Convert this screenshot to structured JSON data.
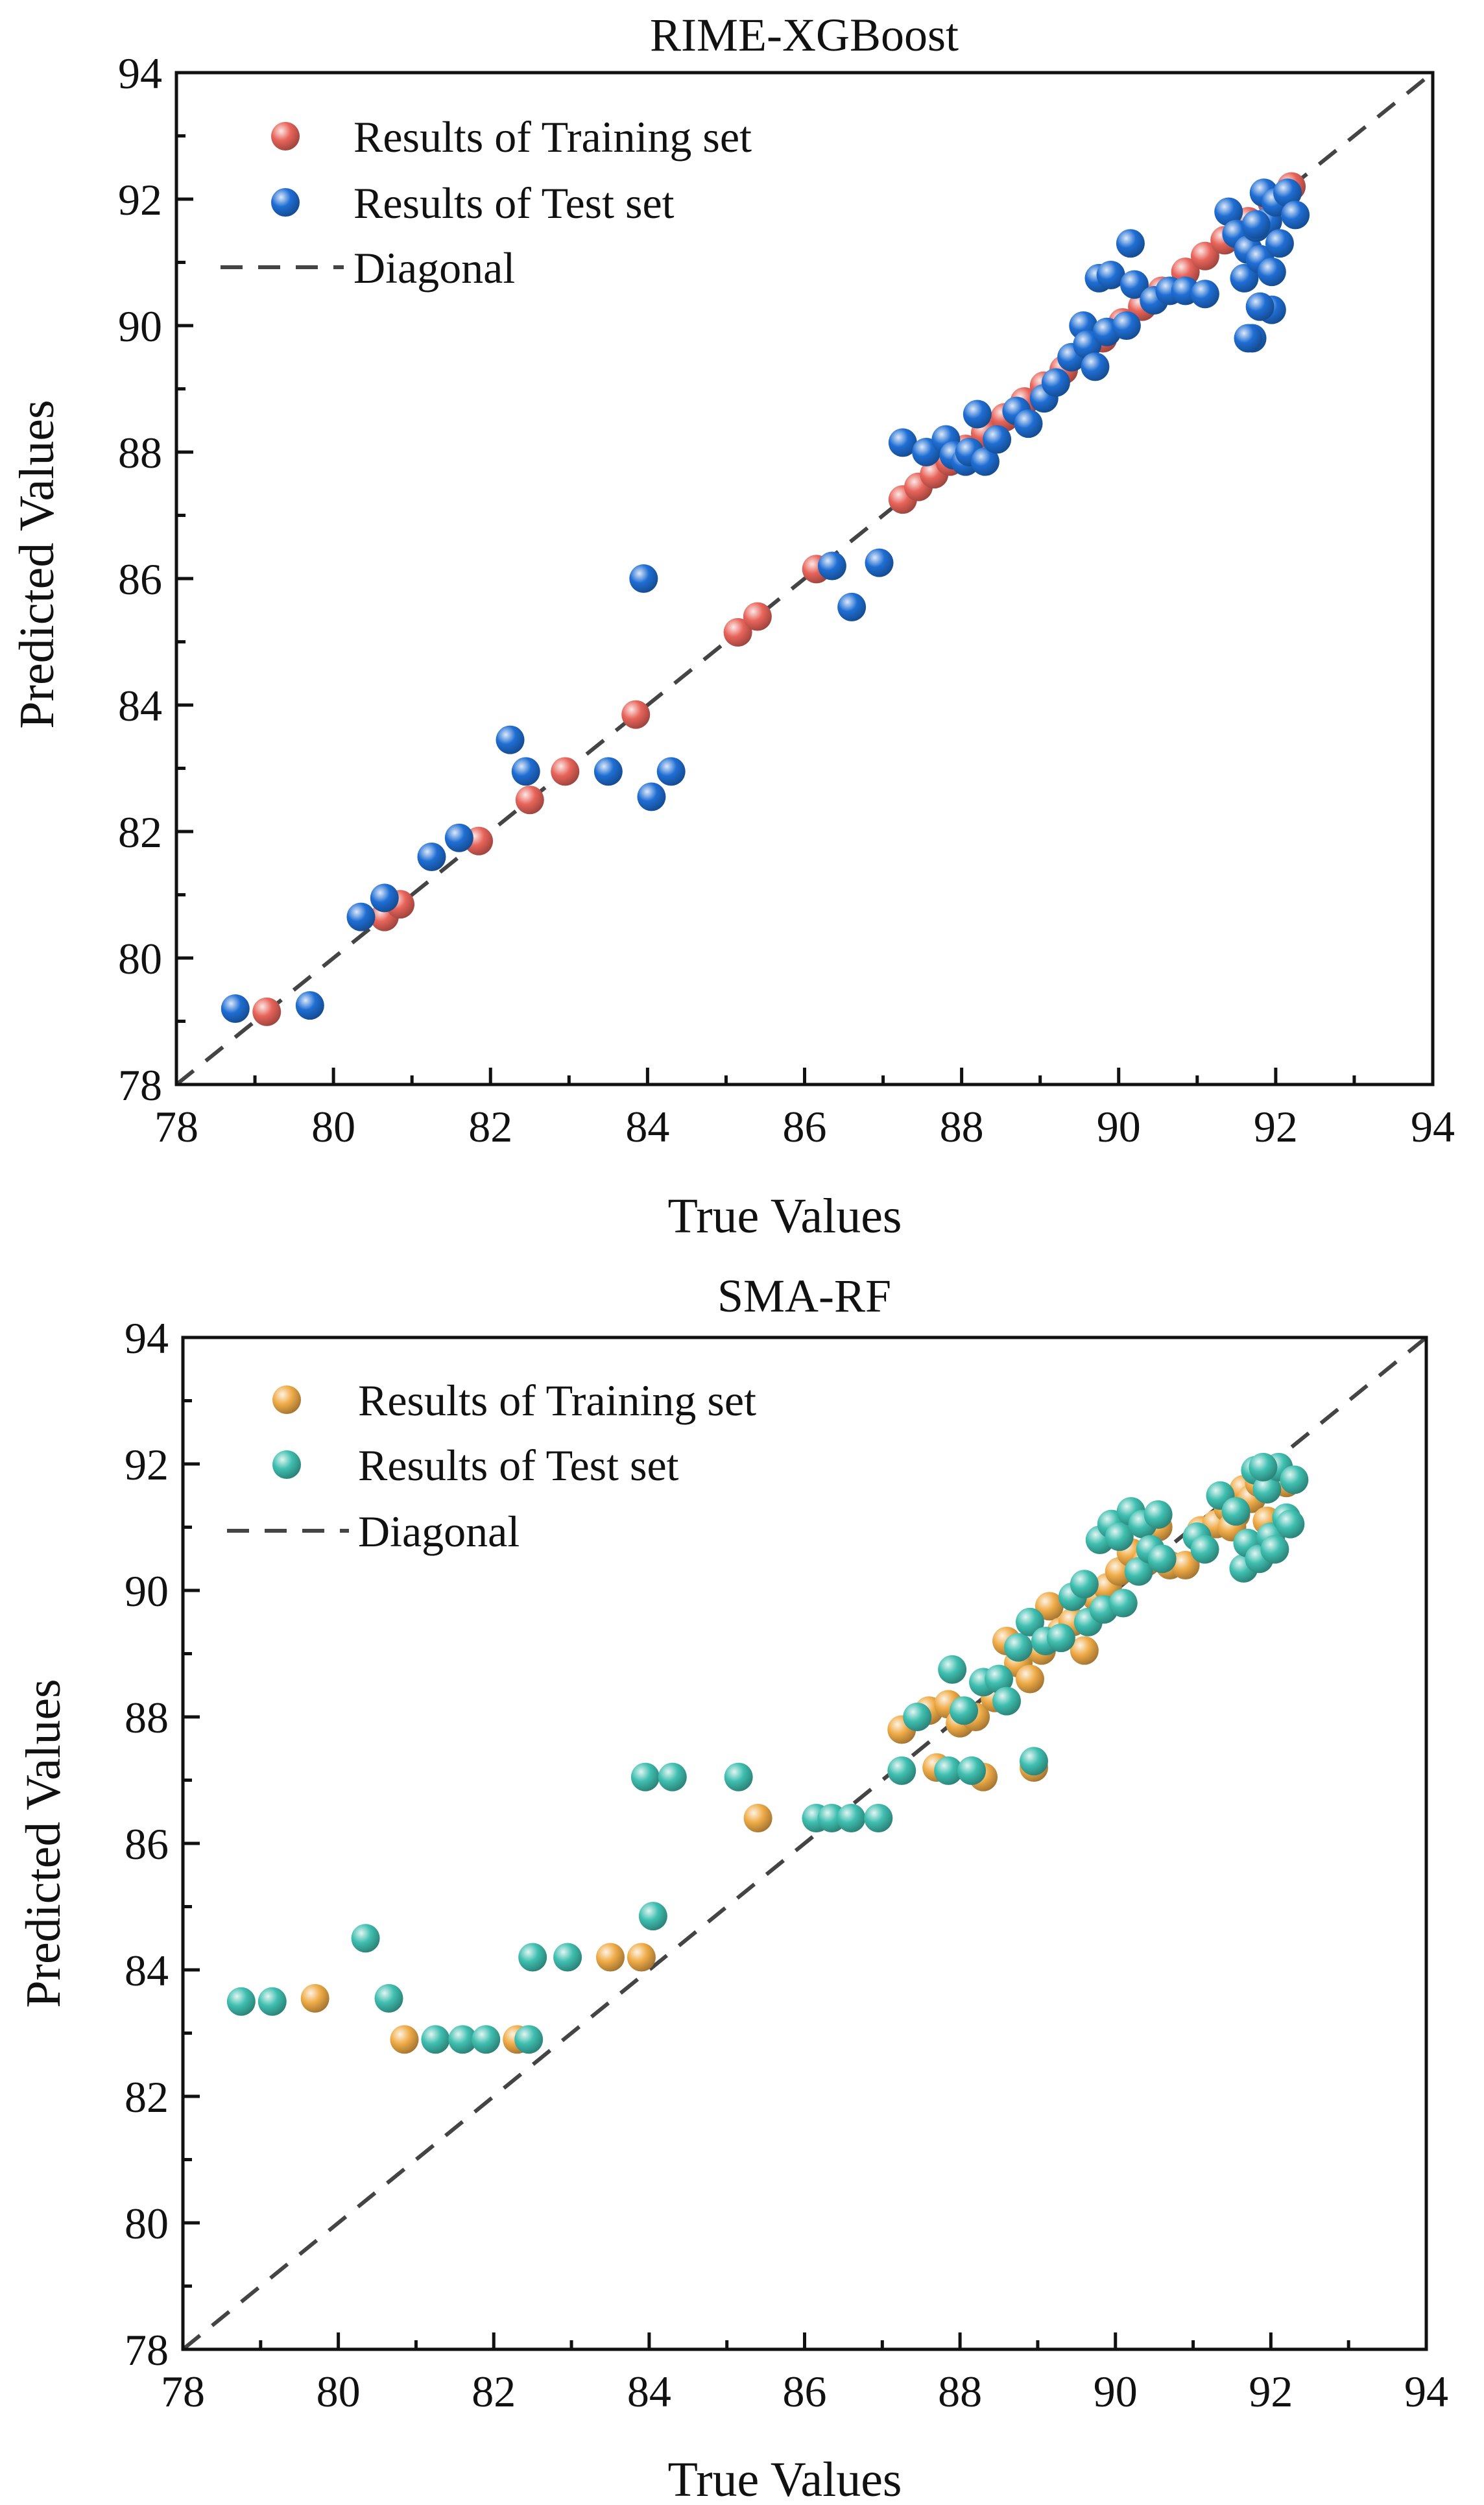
{
  "chart_data": [
    {
      "type": "scatter",
      "title": "RIME-XGBoost",
      "xlabel": "True Values",
      "ylabel": "Predicted Values",
      "xlim": [
        78,
        94
      ],
      "ylim": [
        78,
        94
      ],
      "xticks": [
        78,
        80,
        82,
        84,
        86,
        88,
        90,
        92,
        94
      ],
      "yticks": [
        78,
        80,
        82,
        84,
        86,
        88,
        90,
        92,
        94
      ],
      "grid": false,
      "legend_position": "top-left",
      "diagonal_label": "Diagonal",
      "diagonal_color": "#444444",
      "series": [
        {
          "name": "Results of Training set",
          "color": "#e8645a",
          "points": [
            [
              79.15,
              79.15
            ],
            [
              80.65,
              80.65
            ],
            [
              80.85,
              80.85
            ],
            [
              81.85,
              81.85
            ],
            [
              82.5,
              82.5
            ],
            [
              82.95,
              82.95
            ],
            [
              83.85,
              83.85
            ],
            [
              85.15,
              85.15
            ],
            [
              85.4,
              85.4
            ],
            [
              86.15,
              86.15
            ],
            [
              87.25,
              87.25
            ],
            [
              87.45,
              87.45
            ],
            [
              87.65,
              87.65
            ],
            [
              87.85,
              87.85
            ],
            [
              88.05,
              88.05
            ],
            [
              88.3,
              88.3
            ],
            [
              88.55,
              88.55
            ],
            [
              88.8,
              88.8
            ],
            [
              89.05,
              89.05
            ],
            [
              89.3,
              89.3
            ],
            [
              89.55,
              89.55
            ],
            [
              89.8,
              89.8
            ],
            [
              90.05,
              90.05
            ],
            [
              90.3,
              90.3
            ],
            [
              90.55,
              90.55
            ],
            [
              90.85,
              90.85
            ],
            [
              91.1,
              91.1
            ],
            [
              91.35,
              91.35
            ],
            [
              91.65,
              91.65
            ],
            [
              91.95,
              91.95
            ],
            [
              92.2,
              92.2
            ]
          ]
        },
        {
          "name": "Results of Test set",
          "color": "#1f6ed4",
          "points": [
            [
              78.75,
              79.2
            ],
            [
              79.7,
              79.25
            ],
            [
              80.35,
              80.65
            ],
            [
              80.65,
              80.95
            ],
            [
              81.25,
              81.6
            ],
            [
              81.6,
              81.9
            ],
            [
              82.25,
              83.45
            ],
            [
              82.45,
              82.95
            ],
            [
              83.5,
              82.95
            ],
            [
              83.95,
              86.0
            ],
            [
              84.05,
              82.55
            ],
            [
              84.3,
              82.95
            ],
            [
              86.35,
              86.2
            ],
            [
              86.6,
              85.55
            ],
            [
              86.95,
              86.25
            ],
            [
              87.25,
              88.15
            ],
            [
              87.55,
              88.0
            ],
            [
              87.8,
              88.2
            ],
            [
              87.9,
              87.95
            ],
            [
              88.05,
              87.85
            ],
            [
              88.1,
              88.0
            ],
            [
              88.2,
              88.6
            ],
            [
              88.3,
              87.85
            ],
            [
              88.45,
              88.2
            ],
            [
              88.7,
              88.65
            ],
            [
              88.85,
              88.45
            ],
            [
              89.05,
              88.85
            ],
            [
              89.2,
              89.1
            ],
            [
              89.4,
              89.5
            ],
            [
              89.55,
              90.0
            ],
            [
              89.6,
              89.7
            ],
            [
              89.7,
              89.35
            ],
            [
              89.75,
              90.75
            ],
            [
              89.85,
              89.9
            ],
            [
              89.9,
              90.8
            ],
            [
              90.1,
              90.0
            ],
            [
              90.15,
              91.3
            ],
            [
              90.2,
              90.65
            ],
            [
              90.45,
              90.4
            ],
            [
              90.65,
              90.55
            ],
            [
              90.85,
              90.55
            ],
            [
              91.1,
              90.5
            ],
            [
              91.4,
              91.8
            ],
            [
              91.5,
              91.45
            ],
            [
              91.6,
              90.75
            ],
            [
              91.65,
              91.2
            ],
            [
              91.7,
              89.8
            ],
            [
              91.75,
              91.55
            ],
            [
              91.8,
              91.05
            ],
            [
              91.85,
              92.1
            ],
            [
              91.9,
              91.65
            ],
            [
              91.95,
              90.25
            ],
            [
              91.95,
              90.85
            ],
            [
              92.0,
              91.95
            ],
            [
              92.05,
              91.3
            ],
            [
              92.15,
              92.1
            ],
            [
              92.25,
              91.75
            ],
            [
              91.75,
              91.6
            ],
            [
              91.8,
              90.3
            ],
            [
              91.65,
              89.8
            ]
          ]
        }
      ]
    },
    {
      "type": "scatter",
      "title": "SMA-RF",
      "xlabel": "True Values",
      "ylabel": "Predicted Values",
      "xlim": [
        78,
        94
      ],
      "ylim": [
        78,
        94
      ],
      "xticks": [
        78,
        80,
        82,
        84,
        86,
        88,
        90,
        92,
        94
      ],
      "yticks": [
        78,
        80,
        82,
        84,
        86,
        88,
        90,
        92,
        94
      ],
      "grid": false,
      "legend_position": "top-left",
      "diagonal_label": "Diagonal",
      "diagonal_color": "#444444",
      "series": [
        {
          "name": "Results of Training set",
          "color": "#f0ac48",
          "points": [
            [
              79.7,
              83.55
            ],
            [
              80.85,
              82.9
            ],
            [
              82.3,
              82.9
            ],
            [
              83.5,
              84.2
            ],
            [
              83.9,
              84.2
            ],
            [
              85.4,
              86.4
            ],
            [
              87.25,
              87.8
            ],
            [
              87.6,
              88.1
            ],
            [
              87.7,
              87.2
            ],
            [
              87.85,
              88.2
            ],
            [
              88.0,
              87.9
            ],
            [
              88.2,
              88.0
            ],
            [
              88.3,
              87.05
            ],
            [
              88.45,
              88.3
            ],
            [
              88.6,
              89.2
            ],
            [
              88.75,
              88.85
            ],
            [
              88.9,
              88.6
            ],
            [
              88.95,
              87.2
            ],
            [
              89.05,
              89.05
            ],
            [
              89.15,
              89.75
            ],
            [
              89.3,
              89.35
            ],
            [
              89.45,
              89.5
            ],
            [
              89.6,
              89.05
            ],
            [
              89.75,
              89.9
            ],
            [
              89.9,
              90.05
            ],
            [
              90.05,
              90.3
            ],
            [
              90.2,
              90.6
            ],
            [
              90.4,
              90.45
            ],
            [
              90.55,
              91.0
            ],
            [
              90.7,
              90.4
            ],
            [
              90.9,
              90.4
            ],
            [
              91.1,
              90.95
            ],
            [
              91.3,
              91.05
            ],
            [
              91.45,
              91.3
            ],
            [
              91.55,
              91.2
            ],
            [
              91.65,
              91.6
            ],
            [
              91.75,
              91.45
            ],
            [
              91.85,
              91.7
            ],
            [
              91.95,
              91.1
            ],
            [
              92.1,
              91.9
            ],
            [
              92.2,
              91.7
            ],
            [
              91.5,
              91.0
            ]
          ]
        },
        {
          "name": "Results of Test set",
          "color": "#3fbfb0",
          "points": [
            [
              78.75,
              83.5
            ],
            [
              79.15,
              83.5
            ],
            [
              80.35,
              84.5
            ],
            [
              80.65,
              83.55
            ],
            [
              81.25,
              82.9
            ],
            [
              81.6,
              82.9
            ],
            [
              81.9,
              82.9
            ],
            [
              82.45,
              82.9
            ],
            [
              82.5,
              84.2
            ],
            [
              82.95,
              84.2
            ],
            [
              83.95,
              87.05
            ],
            [
              84.05,
              84.85
            ],
            [
              84.3,
              87.05
            ],
            [
              85.15,
              87.05
            ],
            [
              86.15,
              86.4
            ],
            [
              86.35,
              86.4
            ],
            [
              86.6,
              86.4
            ],
            [
              86.95,
              86.4
            ],
            [
              87.25,
              87.15
            ],
            [
              87.45,
              88.0
            ],
            [
              87.85,
              87.15
            ],
            [
              87.9,
              88.75
            ],
            [
              88.05,
              88.1
            ],
            [
              88.15,
              87.15
            ],
            [
              88.3,
              88.55
            ],
            [
              88.5,
              88.6
            ],
            [
              88.6,
              88.25
            ],
            [
              88.75,
              89.1
            ],
            [
              88.9,
              89.5
            ],
            [
              88.95,
              87.3
            ],
            [
              89.1,
              89.2
            ],
            [
              89.3,
              89.25
            ],
            [
              89.45,
              89.9
            ],
            [
              89.6,
              90.1
            ],
            [
              89.65,
              89.5
            ],
            [
              89.8,
              90.8
            ],
            [
              89.85,
              89.7
            ],
            [
              89.95,
              91.05
            ],
            [
              90.05,
              90.85
            ],
            [
              90.1,
              89.8
            ],
            [
              90.2,
              91.25
            ],
            [
              90.3,
              90.3
            ],
            [
              90.35,
              91.05
            ],
            [
              90.45,
              90.65
            ],
            [
              90.55,
              91.2
            ],
            [
              90.6,
              90.5
            ],
            [
              91.05,
              90.85
            ],
            [
              91.15,
              90.65
            ],
            [
              91.35,
              91.5
            ],
            [
              91.55,
              91.25
            ],
            [
              91.65,
              90.35
            ],
            [
              91.7,
              90.75
            ],
            [
              91.8,
              91.9
            ],
            [
              91.85,
              90.5
            ],
            [
              91.95,
              91.6
            ],
            [
              92.0,
              90.85
            ],
            [
              92.05,
              90.65
            ],
            [
              92.1,
              91.95
            ],
            [
              92.2,
              91.15
            ],
            [
              92.25,
              91.05
            ],
            [
              92.3,
              91.75
            ],
            [
              91.9,
              91.95
            ]
          ]
        }
      ]
    }
  ]
}
